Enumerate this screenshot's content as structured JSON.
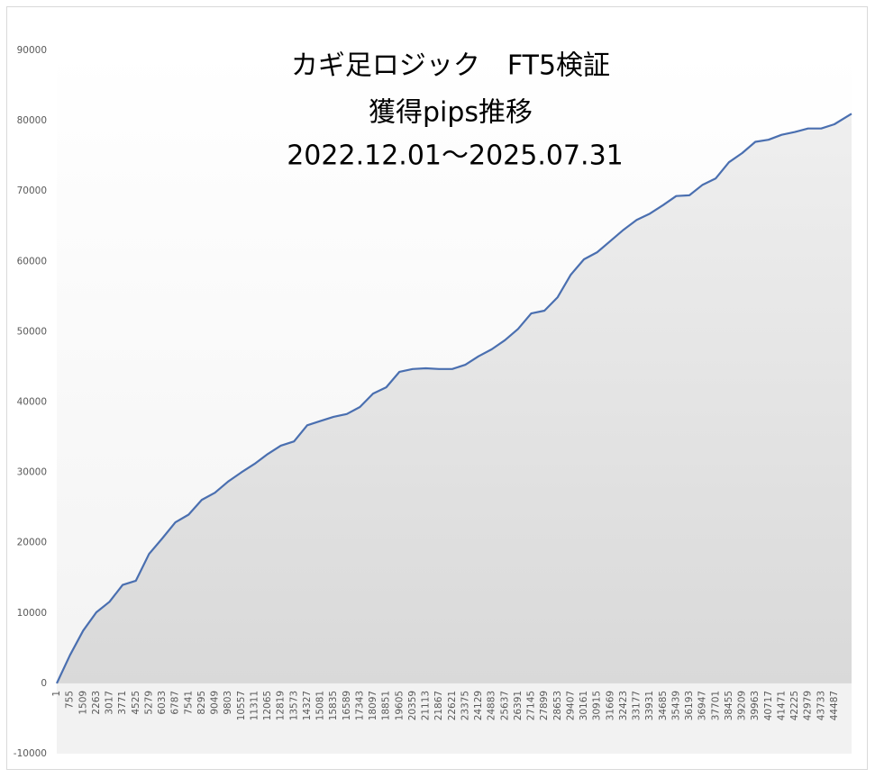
{
  "chart_data": {
    "type": "area",
    "title_lines": [
      "カギ足ロジック　FT5検証",
      "獲得pips推移",
      "2022.12.01～2025.07.31"
    ],
    "x": [
      1,
      755,
      1509,
      2263,
      3017,
      3771,
      4525,
      5279,
      6033,
      6787,
      7541,
      8295,
      9049,
      9803,
      10557,
      11311,
      12065,
      12819,
      13573,
      14327,
      15081,
      15835,
      16589,
      17343,
      18097,
      18851,
      19605,
      20359,
      21113,
      21867,
      22621,
      23375,
      24129,
      24883,
      25637,
      26391,
      27145,
      27899,
      28653,
      29407,
      30161,
      30915,
      31669,
      32423,
      33177,
      33931,
      34685,
      35439,
      36193,
      36947,
      37701,
      38455,
      39209,
      39963,
      40717,
      41471,
      42225,
      42979,
      43733,
      44487,
      45470
    ],
    "values": [
      0,
      4000,
      7500,
      10100,
      11600,
      14000,
      14600,
      18400,
      20600,
      22900,
      24000,
      26100,
      27100,
      28700,
      30000,
      31200,
      32600,
      33800,
      34400,
      36700,
      37300,
      37900,
      38300,
      39300,
      41200,
      42100,
      44300,
      44700,
      44800,
      44700,
      44700,
      45300,
      46500,
      47500,
      48800,
      50400,
      52600,
      53000,
      54900,
      58100,
      60300,
      61300,
      62900,
      64500,
      65900,
      66800,
      68000,
      69300,
      69400,
      70900,
      71800,
      74100,
      75400,
      77000,
      77300,
      78000,
      78400,
      78900,
      78900,
      79500,
      81000
    ],
    "color": "#4a6fb0",
    "xlim": [
      1,
      45470
    ],
    "xticks": [
      1,
      755,
      1509,
      2263,
      3017,
      3771,
      4525,
      5279,
      6033,
      6787,
      7541,
      8295,
      9049,
      9803,
      10557,
      11311,
      12065,
      12819,
      13573,
      14327,
      15081,
      15835,
      16589,
      17343,
      18097,
      18851,
      19605,
      20359,
      21113,
      21867,
      22621,
      23375,
      24129,
      24883,
      25637,
      26391,
      27145,
      27899,
      28653,
      29407,
      30161,
      30915,
      31669,
      32423,
      33177,
      33931,
      34685,
      35439,
      36193,
      36947,
      37701,
      38455,
      39209,
      39963,
      40717,
      41471,
      42225,
      42979,
      43733,
      44487
    ],
    "ylim": [
      -10000,
      90000
    ],
    "yticks": [
      -10000,
      0,
      10000,
      20000,
      30000,
      40000,
      50000,
      60000,
      70000,
      80000,
      90000
    ],
    "grid": false
  }
}
